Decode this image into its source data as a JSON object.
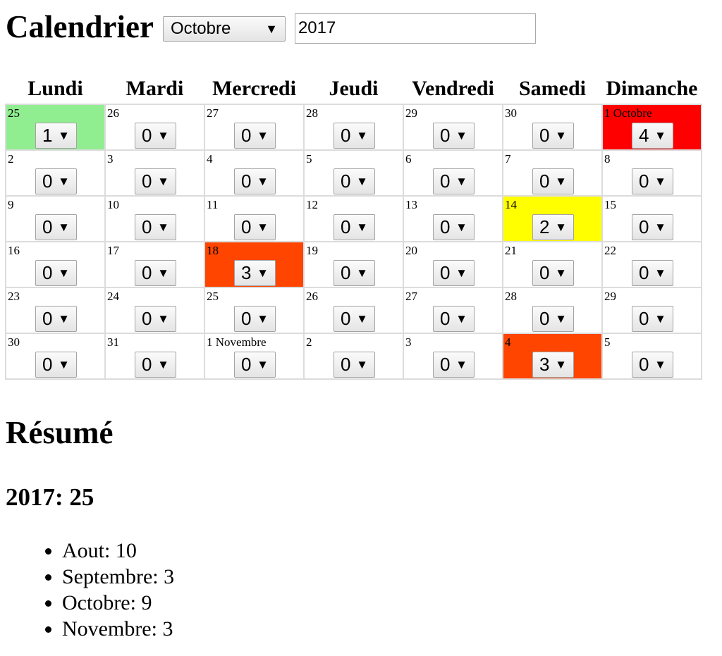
{
  "header": {
    "title": "Calendrier",
    "month": "Octobre",
    "year": "2017"
  },
  "weekdays": [
    "Lundi",
    "Mardi",
    "Mercredi",
    "Jeudi",
    "Vendredi",
    "Samedi",
    "Dimanche"
  ],
  "colors": {
    "count_1": "#90ee90",
    "count_2": "#ffff00",
    "count_3": "#ff4500",
    "count_4": "#ff0000"
  },
  "weeks": [
    [
      {
        "label": "25",
        "value": "1"
      },
      {
        "label": "26",
        "value": "0"
      },
      {
        "label": "27",
        "value": "0"
      },
      {
        "label": "28",
        "value": "0"
      },
      {
        "label": "29",
        "value": "0"
      },
      {
        "label": "30",
        "value": "0"
      },
      {
        "label": "1 Octobre",
        "value": "4"
      }
    ],
    [
      {
        "label": "2",
        "value": "0"
      },
      {
        "label": "3",
        "value": "0"
      },
      {
        "label": "4",
        "value": "0"
      },
      {
        "label": "5",
        "value": "0"
      },
      {
        "label": "6",
        "value": "0"
      },
      {
        "label": "7",
        "value": "0"
      },
      {
        "label": "8",
        "value": "0"
      }
    ],
    [
      {
        "label": "9",
        "value": "0"
      },
      {
        "label": "10",
        "value": "0"
      },
      {
        "label": "11",
        "value": "0"
      },
      {
        "label": "12",
        "value": "0"
      },
      {
        "label": "13",
        "value": "0"
      },
      {
        "label": "14",
        "value": "2"
      },
      {
        "label": "15",
        "value": "0"
      }
    ],
    [
      {
        "label": "16",
        "value": "0"
      },
      {
        "label": "17",
        "value": "0"
      },
      {
        "label": "18",
        "value": "3"
      },
      {
        "label": "19",
        "value": "0"
      },
      {
        "label": "20",
        "value": "0"
      },
      {
        "label": "21",
        "value": "0"
      },
      {
        "label": "22",
        "value": "0"
      }
    ],
    [
      {
        "label": "23",
        "value": "0"
      },
      {
        "label": "24",
        "value": "0"
      },
      {
        "label": "25",
        "value": "0"
      },
      {
        "label": "26",
        "value": "0"
      },
      {
        "label": "27",
        "value": "0"
      },
      {
        "label": "28",
        "value": "0"
      },
      {
        "label": "29",
        "value": "0"
      }
    ],
    [
      {
        "label": "30",
        "value": "0"
      },
      {
        "label": "31",
        "value": "0"
      },
      {
        "label": "1 Novembre",
        "value": "0"
      },
      {
        "label": "2",
        "value": "0"
      },
      {
        "label": "3",
        "value": "0"
      },
      {
        "label": "4",
        "value": "3"
      },
      {
        "label": "5",
        "value": "0"
      }
    ]
  ],
  "summary": {
    "title": "Résumé",
    "year_total": "2017: 25",
    "months": [
      "Aout: 10",
      "Septembre: 3",
      "Octobre: 9",
      "Novembre: 3"
    ]
  }
}
